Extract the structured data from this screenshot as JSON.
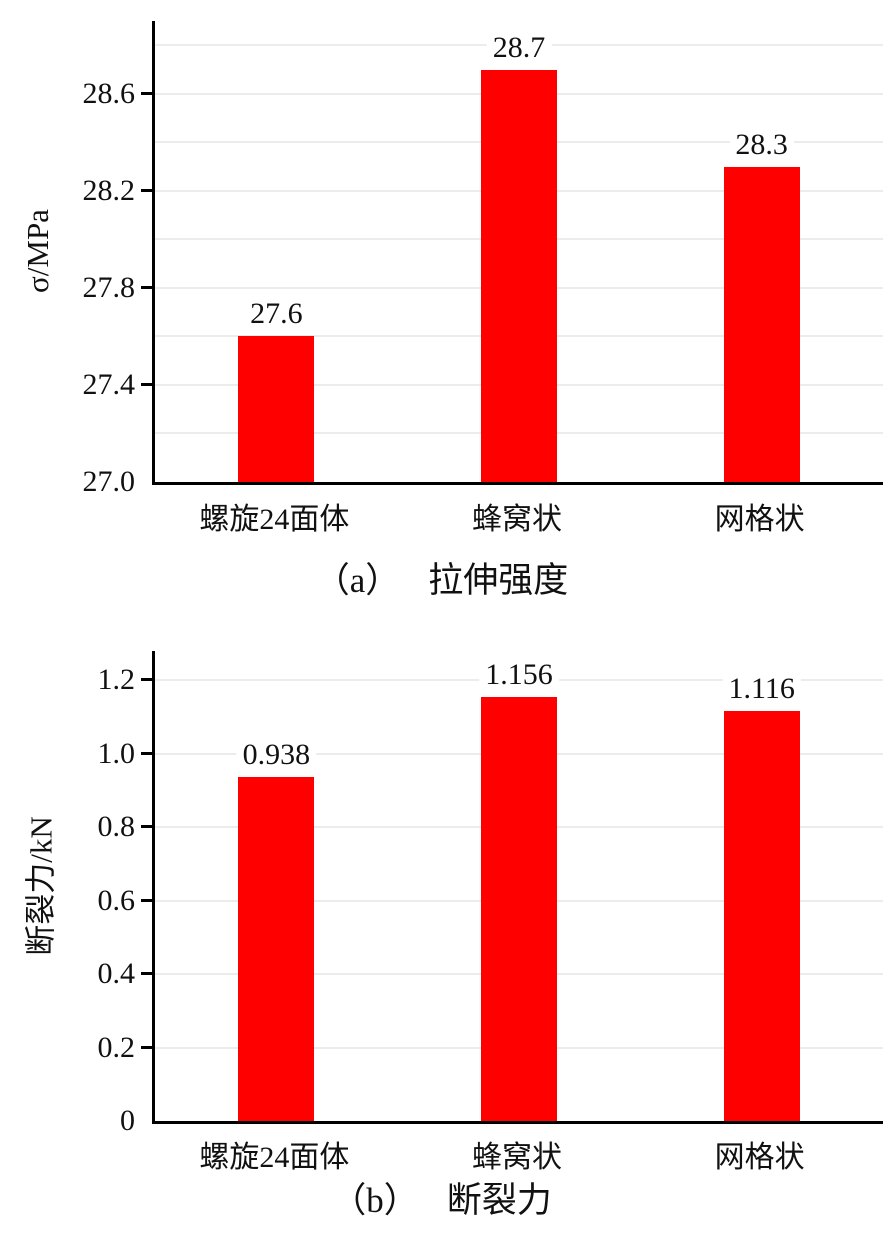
{
  "colors": {
    "bar": "#ff0000",
    "grid": "#ececec",
    "axis": "#000000",
    "text": "#111111"
  },
  "chart_data": [
    {
      "type": "bar",
      "panel_label": "（a）",
      "caption": "拉伸强度",
      "title": "（a） 拉伸强度",
      "categories": [
        "螺旋24面体",
        "蜂窝状",
        "网格状"
      ],
      "values": [
        27.6,
        28.7,
        28.3
      ],
      "value_labels": [
        "27.6",
        "28.7",
        "28.3"
      ],
      "xlabel": "",
      "ylabel": "σ/MPa",
      "ylim": [
        27.0,
        28.9
      ],
      "yticks": [
        27.0,
        27.4,
        27.8,
        28.2,
        28.6
      ],
      "ytick_labels": [
        "27.0",
        "27.4",
        "27.8",
        "28.2",
        "28.6"
      ],
      "grid": true,
      "grid_step": 0.2,
      "legend": "none"
    },
    {
      "type": "bar",
      "panel_label": "（b）",
      "caption": "断裂力",
      "title": "（b） 断裂力",
      "categories": [
        "螺旋24面体",
        "蜂窝状",
        "网格状"
      ],
      "values": [
        0.938,
        1.156,
        1.116
      ],
      "value_labels": [
        "0.938",
        "1.156",
        "1.116"
      ],
      "xlabel": "",
      "ylabel": "断裂力/kN",
      "ylim": [
        0,
        1.28
      ],
      "yticks": [
        0,
        0.2,
        0.4,
        0.6,
        0.8,
        1.0,
        1.2
      ],
      "ytick_labels": [
        "0",
        "0.2",
        "0.4",
        "0.6",
        "0.8",
        "1.0",
        "1.2"
      ],
      "grid": true,
      "grid_step": 0.2,
      "legend": "none"
    }
  ]
}
